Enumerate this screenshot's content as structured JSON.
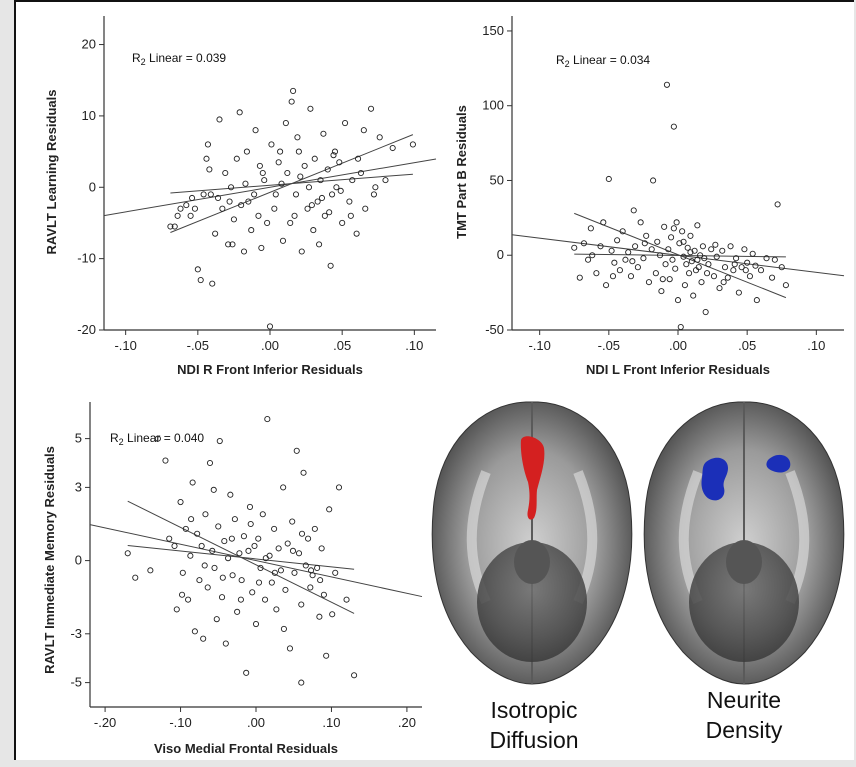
{
  "panels": [
    {
      "r2_prefix": "R",
      "r2_sub": "2",
      "r2_text": " Linear = 0.039",
      "xlabel": "NDI R Front Inferior Residuals",
      "ylabel": "RAVLT Learning Residuals",
      "xticks": [
        "-.10",
        "-.05",
        ".00",
        ".05",
        ".10"
      ],
      "yticks": [
        "20",
        "10",
        "0",
        "-10",
        "-20"
      ]
    },
    {
      "r2_prefix": "R",
      "r2_sub": "2",
      "r2_text": " Linear = 0.034",
      "xlabel": "NDI L Front Inferior Residuals",
      "ylabel": "TMT Part B Residuals",
      "xticks": [
        "-.10",
        "-.05",
        ".00",
        ".05",
        ".10"
      ],
      "yticks": [
        "150",
        "100",
        "50",
        "0",
        "-50"
      ]
    },
    {
      "r2_prefix": "R",
      "r2_sub": "2",
      "r2_text": " Linear = 0.040",
      "xlabel": "Viso Medial Frontal Residuals",
      "ylabel": "RAVLT Immediate Memory Residuals",
      "xticks": [
        "-.20",
        "-.10",
        ".00",
        ".10",
        ".20"
      ],
      "yticks": [
        "5",
        "3",
        "0",
        "-3",
        "-5"
      ]
    }
  ],
  "brains": {
    "left_caption_line1": "Isotropic",
    "left_caption_line2": "Diffusion",
    "right_caption_line1": "Neurite",
    "right_caption_line2": "Density",
    "left_highlight_color": "#d42020",
    "right_highlight_color": "#1b2fb8"
  },
  "chart_data": [
    {
      "type": "scatter",
      "r2": 0.039,
      "xlabel": "NDI R Front Inferior Residuals",
      "ylabel": "RAVLT Learning Residuals",
      "xlim": [
        -0.115,
        0.115
      ],
      "ylim": [
        -20,
        24
      ],
      "fit": {
        "slope": 34.5,
        "intercept": 0.0
      },
      "points": [
        [
          -0.066,
          -5.5
        ],
        [
          -0.062,
          -3
        ],
        [
          -0.058,
          -2.5
        ],
        [
          -0.055,
          -4
        ],
        [
          -0.052,
          -3
        ],
        [
          -0.05,
          -11.5
        ],
        [
          -0.048,
          -13
        ],
        [
          -0.046,
          -1
        ],
        [
          -0.044,
          4
        ],
        [
          -0.043,
          6
        ],
        [
          -0.042,
          2.5
        ],
        [
          -0.04,
          -13.5
        ],
        [
          -0.038,
          -6.5
        ],
        [
          -0.036,
          -1.5
        ],
        [
          -0.035,
          9.5
        ],
        [
          -0.033,
          -3
        ],
        [
          -0.031,
          2
        ],
        [
          -0.029,
          -8
        ],
        [
          -0.028,
          -2
        ],
        [
          -0.027,
          0
        ],
        [
          -0.025,
          -4.5
        ],
        [
          -0.023,
          4
        ],
        [
          -0.021,
          10.5
        ],
        [
          -0.02,
          -2.5
        ],
        [
          -0.018,
          -9
        ],
        [
          -0.016,
          5
        ],
        [
          -0.015,
          -2
        ],
        [
          -0.013,
          -6
        ],
        [
          -0.011,
          -1
        ],
        [
          -0.01,
          8
        ],
        [
          -0.008,
          -4
        ],
        [
          -0.006,
          -8.5
        ],
        [
          -0.005,
          2
        ],
        [
          -0.004,
          1
        ],
        [
          -0.002,
          -5
        ],
        [
          0.0,
          -19.5
        ],
        [
          0.001,
          6
        ],
        [
          0.003,
          -3
        ],
        [
          0.004,
          -1
        ],
        [
          0.006,
          3.5
        ],
        [
          0.008,
          0.5
        ],
        [
          0.009,
          -7.5
        ],
        [
          0.011,
          9
        ],
        [
          0.012,
          2
        ],
        [
          0.014,
          -5
        ],
        [
          0.015,
          12
        ],
        [
          0.016,
          13.5
        ],
        [
          0.018,
          -1
        ],
        [
          0.019,
          7
        ],
        [
          0.021,
          1.5
        ],
        [
          0.022,
          -9
        ],
        [
          0.024,
          3
        ],
        [
          0.026,
          -3
        ],
        [
          0.027,
          0
        ],
        [
          0.028,
          11
        ],
        [
          0.03,
          -6
        ],
        [
          0.031,
          4
        ],
        [
          0.033,
          -2
        ],
        [
          0.034,
          -8
        ],
        [
          0.035,
          1
        ],
        [
          0.037,
          7.5
        ],
        [
          0.038,
          -4
        ],
        [
          0.04,
          2.5
        ],
        [
          0.042,
          -11
        ],
        [
          0.043,
          -1
        ],
        [
          0.045,
          5
        ],
        [
          0.046,
          0
        ],
        [
          0.048,
          3.5
        ],
        [
          0.05,
          -5
        ],
        [
          0.052,
          9
        ],
        [
          0.055,
          -2
        ],
        [
          0.057,
          1
        ],
        [
          0.06,
          -6.5
        ],
        [
          0.063,
          2
        ],
        [
          0.066,
          -3
        ],
        [
          0.07,
          11
        ],
        [
          0.073,
          0
        ],
        [
          0.076,
          7
        ],
        [
          0.08,
          1
        ],
        [
          0.085,
          5.5
        ],
        [
          0.099,
          6
        ],
        [
          -0.069,
          -5.5
        ],
        [
          -0.064,
          -4
        ],
        [
          -0.054,
          -1.5
        ],
        [
          -0.041,
          -1
        ],
        [
          -0.026,
          -8
        ],
        [
          -0.017,
          0.5
        ],
        [
          -0.007,
          3
        ],
        [
          0.007,
          5
        ],
        [
          0.017,
          -4
        ],
        [
          0.02,
          5
        ],
        [
          0.029,
          -2.5
        ],
        [
          0.036,
          -1.5
        ],
        [
          0.041,
          -3.5
        ],
        [
          0.044,
          4.5
        ],
        [
          0.049,
          -0.5
        ],
        [
          0.056,
          -4
        ],
        [
          0.061,
          4
        ],
        [
          0.065,
          8
        ],
        [
          0.072,
          -1
        ]
      ]
    },
    {
      "type": "scatter",
      "r2": 0.034,
      "xlabel": "NDI L Front Inferior Residuals",
      "ylabel": "TMT Part B Residuals",
      "xlim": [
        -0.12,
        0.12
      ],
      "ylim": [
        -50,
        160
      ],
      "fit": {
        "slope": -114.0,
        "intercept": 0.0
      },
      "points": [
        [
          -0.075,
          5
        ],
        [
          -0.071,
          -15
        ],
        [
          -0.068,
          8
        ],
        [
          -0.065,
          -3
        ],
        [
          -0.062,
          0
        ],
        [
          -0.059,
          -12
        ],
        [
          -0.056,
          6
        ],
        [
          -0.054,
          22
        ],
        [
          -0.052,
          -20
        ],
        [
          -0.05,
          51
        ],
        [
          -0.048,
          3
        ],
        [
          -0.046,
          -5
        ],
        [
          -0.044,
          10
        ],
        [
          -0.042,
          -10
        ],
        [
          -0.04,
          16
        ],
        [
          -0.038,
          -3
        ],
        [
          -0.036,
          2
        ],
        [
          -0.034,
          -14
        ],
        [
          -0.032,
          30
        ],
        [
          -0.031,
          6
        ],
        [
          -0.029,
          -8
        ],
        [
          -0.027,
          22
        ],
        [
          -0.025,
          -2
        ],
        [
          -0.023,
          13
        ],
        [
          -0.021,
          -18
        ],
        [
          -0.019,
          4
        ],
        [
          -0.018,
          50
        ],
        [
          -0.016,
          -12
        ],
        [
          -0.015,
          9
        ],
        [
          -0.013,
          0
        ],
        [
          -0.012,
          -24
        ],
        [
          -0.01,
          19
        ],
        [
          -0.009,
          -6
        ],
        [
          -0.008,
          114
        ],
        [
          -0.007,
          4
        ],
        [
          -0.006,
          -16
        ],
        [
          -0.005,
          12
        ],
        [
          -0.004,
          -3
        ],
        [
          -0.003,
          86
        ],
        [
          -0.002,
          -9
        ],
        [
          -0.001,
          22
        ],
        [
          0.0,
          -30
        ],
        [
          0.001,
          8
        ],
        [
          0.002,
          -48
        ],
        [
          0.003,
          16
        ],
        [
          0.004,
          -1
        ],
        [
          0.005,
          -20
        ],
        [
          0.006,
          -6
        ],
        [
          0.007,
          5
        ],
        [
          0.008,
          -12
        ],
        [
          0.009,
          13
        ],
        [
          0.01,
          -4
        ],
        [
          0.011,
          -27
        ],
        [
          0.012,
          3
        ],
        [
          0.013,
          -10
        ],
        [
          0.014,
          20
        ],
        [
          0.015,
          -8
        ],
        [
          0.016,
          0
        ],
        [
          0.017,
          -18
        ],
        [
          0.018,
          6
        ],
        [
          0.019,
          -2
        ],
        [
          0.02,
          -38
        ],
        [
          0.022,
          -6
        ],
        [
          0.024,
          4
        ],
        [
          0.026,
          -14
        ],
        [
          0.028,
          -1
        ],
        [
          0.03,
          -22
        ],
        [
          0.032,
          3
        ],
        [
          0.034,
          -8
        ],
        [
          0.036,
          -15
        ],
        [
          0.038,
          6
        ],
        [
          0.04,
          -10
        ],
        [
          0.042,
          -2
        ],
        [
          0.044,
          -25
        ],
        [
          0.046,
          -8
        ],
        [
          0.048,
          4
        ],
        [
          0.05,
          -5
        ],
        [
          0.052,
          -14
        ],
        [
          0.054,
          1
        ],
        [
          0.056,
          -7
        ],
        [
          0.06,
          -10
        ],
        [
          0.064,
          -2
        ],
        [
          0.068,
          -15
        ],
        [
          0.072,
          34
        ],
        [
          0.075,
          -8
        ],
        [
          0.078,
          -20
        ],
        [
          -0.063,
          18
        ],
        [
          -0.047,
          -14
        ],
        [
          -0.033,
          -4
        ],
        [
          -0.024,
          8
        ],
        [
          -0.011,
          -16
        ],
        [
          -0.003,
          18
        ],
        [
          0.004,
          9
        ],
        [
          0.009,
          2
        ],
        [
          0.014,
          -3
        ],
        [
          0.021,
          -12
        ],
        [
          0.027,
          7
        ],
        [
          0.033,
          -18
        ],
        [
          0.041,
          -6
        ],
        [
          0.049,
          -10
        ],
        [
          0.057,
          -30
        ],
        [
          0.07,
          -3
        ]
      ]
    },
    {
      "type": "scatter",
      "r2": 0.04,
      "xlabel": "Viso Medial Frontal Residuals",
      "ylabel": "RAVLT Immediate Memory Residuals",
      "xlim": [
        -0.22,
        0.22
      ],
      "ylim": [
        -6,
        6.5
      ],
      "fit": {
        "slope": -6.7,
        "intercept": 0.0
      },
      "points": [
        [
          -0.17,
          0.3
        ],
        [
          -0.16,
          -0.7
        ],
        [
          -0.13,
          5
        ],
        [
          -0.12,
          4.1
        ],
        [
          -0.115,
          0.9
        ],
        [
          -0.105,
          -2
        ],
        [
          -0.1,
          2.4
        ],
        [
          -0.097,
          -0.5
        ],
        [
          -0.093,
          1.3
        ],
        [
          -0.09,
          -1.6
        ],
        [
          -0.087,
          0.2
        ],
        [
          -0.084,
          3.2
        ],
        [
          -0.081,
          -2.9
        ],
        [
          -0.078,
          1.1
        ],
        [
          -0.075,
          -0.8
        ],
        [
          -0.072,
          0.6
        ],
        [
          -0.07,
          -3.2
        ],
        [
          -0.067,
          1.9
        ],
        [
          -0.064,
          -1.1
        ],
        [
          -0.061,
          4
        ],
        [
          -0.058,
          0.4
        ],
        [
          -0.055,
          -0.3
        ],
        [
          -0.052,
          -2.4
        ],
        [
          -0.05,
          1.4
        ],
        [
          -0.048,
          4.9
        ],
        [
          -0.045,
          -1.5
        ],
        [
          -0.042,
          0.8
        ],
        [
          -0.04,
          -3.4
        ],
        [
          -0.037,
          0.1
        ],
        [
          -0.034,
          2.7
        ],
        [
          -0.031,
          -0.6
        ],
        [
          -0.028,
          1.7
        ],
        [
          -0.025,
          -2.1
        ],
        [
          -0.022,
          0.3
        ],
        [
          -0.019,
          -0.8
        ],
        [
          -0.016,
          1
        ],
        [
          -0.013,
          -4.6
        ],
        [
          -0.01,
          0.4
        ],
        [
          -0.008,
          2.2
        ],
        [
          -0.005,
          -1.3
        ],
        [
          -0.002,
          0.6
        ],
        [
          0.0,
          -2.6
        ],
        [
          0.003,
          0.9
        ],
        [
          0.006,
          -0.3
        ],
        [
          0.009,
          1.9
        ],
        [
          0.012,
          -1.6
        ],
        [
          0.015,
          5.8
        ],
        [
          0.018,
          0.2
        ],
        [
          0.021,
          -0.9
        ],
        [
          0.024,
          1.3
        ],
        [
          0.027,
          -2
        ],
        [
          0.03,
          0.5
        ],
        [
          0.033,
          -0.4
        ],
        [
          0.036,
          3
        ],
        [
          0.039,
          -1.2
        ],
        [
          0.042,
          0.7
        ],
        [
          0.045,
          -3.6
        ],
        [
          0.048,
          1.6
        ],
        [
          0.051,
          -0.5
        ],
        [
          0.054,
          4.5
        ],
        [
          0.057,
          0.3
        ],
        [
          0.06,
          -1.8
        ],
        [
          0.063,
          3.6
        ],
        [
          0.066,
          -0.2
        ],
        [
          0.069,
          0.9
        ],
        [
          0.072,
          -1.1
        ],
        [
          0.075,
          -0.6
        ],
        [
          0.078,
          1.3
        ],
        [
          0.081,
          -0.3
        ],
        [
          0.084,
          -2.3
        ],
        [
          0.087,
          0.5
        ],
        [
          0.09,
          -1.4
        ],
        [
          0.093,
          -3.9
        ],
        [
          0.097,
          2.1
        ],
        [
          0.101,
          -2.2
        ],
        [
          0.105,
          -0.5
        ],
        [
          0.11,
          3
        ],
        [
          0.12,
          -1.6
        ],
        [
          0.13,
          -4.7
        ],
        [
          0.06,
          -5
        ],
        [
          -0.14,
          -0.4
        ],
        [
          -0.108,
          0.6
        ],
        [
          -0.098,
          -1.4
        ],
        [
          -0.086,
          1.7
        ],
        [
          -0.068,
          -0.2
        ],
        [
          -0.056,
          2.9
        ],
        [
          -0.044,
          -0.7
        ],
        [
          -0.032,
          0.9
        ],
        [
          -0.02,
          -1.6
        ],
        [
          -0.007,
          1.5
        ],
        [
          0.004,
          -0.9
        ],
        [
          0.013,
          0.1
        ],
        [
          0.025,
          -0.5
        ],
        [
          0.037,
          -2.8
        ],
        [
          0.049,
          0.4
        ],
        [
          0.061,
          1.1
        ],
        [
          0.073,
          -0.4
        ],
        [
          0.085,
          -0.8
        ]
      ]
    }
  ]
}
